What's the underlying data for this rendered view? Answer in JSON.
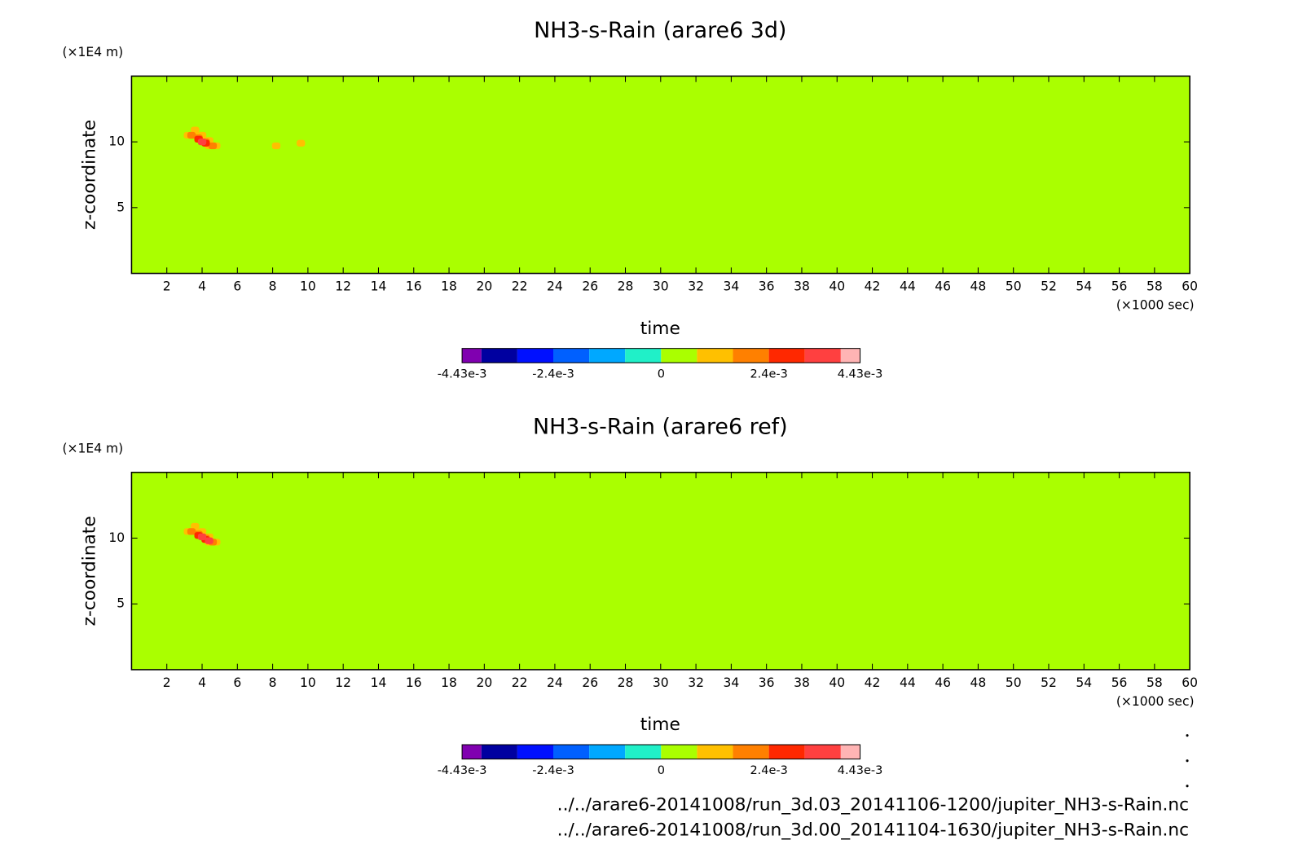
{
  "chart_data": [
    {
      "type": "heatmap",
      "title": "NH3-s-Rain (arare6 3d)",
      "x_label": "time",
      "x_unit": "(×1000 sec)",
      "y_label": "z-coordinate",
      "y_unit": "(×1E4 m)",
      "xlim": [
        0,
        60
      ],
      "ylim": [
        0,
        15
      ],
      "xticks": [
        2,
        4,
        6,
        8,
        10,
        12,
        14,
        16,
        18,
        20,
        22,
        24,
        26,
        28,
        30,
        32,
        34,
        36,
        38,
        40,
        42,
        44,
        46,
        48,
        50,
        52,
        54,
        56,
        58,
        60
      ],
      "yticks": [
        5,
        10
      ],
      "x": [
        3.6,
        3.2,
        3.6,
        4.0,
        4.4,
        4.8,
        4.4,
        8.2,
        9.6,
        3.4,
        3.8,
        4.2,
        4.6,
        3.8,
        4.2,
        4.0
      ],
      "y": [
        10.9,
        10.5,
        10.5,
        10.5,
        10.1,
        9.7,
        9.7,
        9.7,
        9.9,
        10.5,
        10.3,
        10.0,
        9.7,
        10.2,
        9.9,
        10.0
      ],
      "values": [
        0.0012,
        0.0012,
        0.0012,
        0.0012,
        0.0012,
        0.0012,
        0.0012,
        0.0012,
        0.0012,
        0.002,
        0.002,
        0.002,
        0.002,
        0.0028,
        0.0028,
        0.0036
      ],
      "colorbar": {
        "levels": [
          -0.00443,
          -0.004,
          -0.0032,
          -0.0024,
          -0.0016,
          -0.0008,
          0,
          0.0008,
          0.0016,
          0.0024,
          0.0032,
          0.004,
          0.00443
        ],
        "colors": [
          "#8000b0",
          "#0000a0",
          "#0010ff",
          "#0060ff",
          "#00a8ff",
          "#20f0c8",
          "#aaff00",
          "#ffc000",
          "#ff8000",
          "#ff2800",
          "#ff4040",
          "#ffb4b4"
        ],
        "ticks": [
          {
            "value": -0.00443,
            "label": "-4.43e-3"
          },
          {
            "value": -0.0024,
            "label": "-2.4e-3"
          },
          0,
          {
            "value": 0.0024,
            "label": "2.4e-3"
          },
          {
            "value": 0.00443,
            "label": "4.43e-3"
          }
        ]
      }
    },
    {
      "type": "heatmap",
      "title": "NH3-s-Rain (arare6 ref)",
      "x_label": "time",
      "x_unit": "(×1000 sec)",
      "y_label": "z-coordinate",
      "y_unit": "(×1E4 m)",
      "xlim": [
        0,
        60
      ],
      "ylim": [
        0,
        15
      ],
      "xticks": [
        2,
        4,
        6,
        8,
        10,
        12,
        14,
        16,
        18,
        20,
        22,
        24,
        26,
        28,
        30,
        32,
        34,
        36,
        38,
        40,
        42,
        44,
        46,
        48,
        50,
        52,
        54,
        56,
        58,
        60
      ],
      "yticks": [
        5,
        10
      ],
      "x": [
        3.6,
        3.2,
        3.6,
        4.0,
        4.4,
        4.8,
        4.4,
        3.4,
        3.8,
        4.2,
        4.6,
        3.8,
        4.2,
        4.0,
        4.4
      ],
      "y": [
        10.9,
        10.5,
        10.5,
        10.5,
        10.1,
        9.7,
        9.7,
        10.5,
        10.3,
        10.0,
        9.7,
        10.2,
        9.9,
        10.1,
        9.8
      ],
      "values": [
        0.0012,
        0.0012,
        0.0012,
        0.0012,
        0.0012,
        0.0012,
        0.0012,
        0.002,
        0.002,
        0.002,
        0.002,
        0.0028,
        0.0028,
        0.0036,
        0.0036
      ],
      "colorbar": {
        "levels": [
          -0.00443,
          -0.004,
          -0.0032,
          -0.0024,
          -0.0016,
          -0.0008,
          0,
          0.0008,
          0.0016,
          0.0024,
          0.0032,
          0.004,
          0.00443
        ],
        "colors": [
          "#8000b0",
          "#0000a0",
          "#0010ff",
          "#0060ff",
          "#00a8ff",
          "#20f0c8",
          "#aaff00",
          "#ffc000",
          "#ff8000",
          "#ff2800",
          "#ff4040",
          "#ffb4b4"
        ],
        "ticks": [
          {
            "value": -0.00443,
            "label": "-4.43e-3"
          },
          {
            "value": -0.0024,
            "label": "-2.4e-3"
          },
          0,
          {
            "value": 0.0024,
            "label": "2.4e-3"
          },
          {
            "value": 0.00443,
            "label": "4.43e-3"
          }
        ]
      }
    }
  ],
  "files": [
    "../../arare6-20141008/run_3d.03_20141106-1200/jupiter_NH3-s-Rain.nc",
    "../../arare6-20141008/run_3d.00_20141104-1630/jupiter_NH3-s-Rain.nc"
  ]
}
